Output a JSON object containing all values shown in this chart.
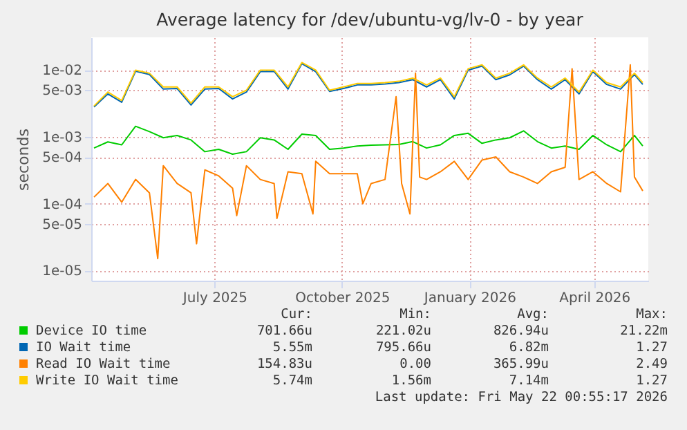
{
  "chart_data": {
    "type": "line",
    "title": "Average latency for /dev/ubuntu-vg/lv-0 - by year",
    "ylabel": "seconds",
    "x": [
      "2025-04-20",
      "2025-04-30",
      "2025-05-10",
      "2025-05-20",
      "2025-05-30",
      "2025-06-09",
      "2025-06-19",
      "2025-06-29",
      "2025-07-09",
      "2025-07-19",
      "2025-07-29",
      "2025-08-08",
      "2025-08-18",
      "2025-08-28",
      "2025-09-07",
      "2025-09-17",
      "2025-09-27",
      "2025-10-07",
      "2025-10-17",
      "2025-10-27",
      "2025-11-06",
      "2025-11-16",
      "2025-11-26",
      "2025-12-06",
      "2025-12-16",
      "2025-12-26",
      "2026-01-05",
      "2026-01-15",
      "2026-01-25",
      "2026-02-04",
      "2026-02-14",
      "2026-02-24",
      "2026-03-06",
      "2026-03-16",
      "2026-03-26",
      "2026-04-05",
      "2026-04-15",
      "2026-04-25",
      "2026-05-05",
      "2026-05-15",
      "2026-05-21"
    ],
    "series": [
      {
        "name": "Device IO time",
        "color": "#00cc00",
        "values": [
          0.00068,
          0.00084,
          0.00076,
          0.00144,
          0.0012,
          0.00097,
          0.00105,
          0.0009,
          0.0006,
          0.00065,
          0.00055,
          0.0006,
          0.00097,
          0.0009,
          0.00065,
          0.0011,
          0.00105,
          0.00065,
          0.00068,
          0.00073,
          0.00075,
          0.00076,
          0.00077,
          0.00085,
          0.00068,
          0.00076,
          0.00105,
          0.00113,
          0.0008,
          0.0009,
          0.00097,
          0.00123,
          0.00085,
          0.00068,
          0.00073,
          0.00065,
          0.00105,
          0.00076,
          0.0006,
          0.00105,
          0.00073
        ]
      },
      {
        "name": "IO Wait time",
        "color": "#0066b3",
        "values": [
          0.0028,
          0.0044,
          0.0033,
          0.0096,
          0.0086,
          0.0052,
          0.0053,
          0.003,
          0.0052,
          0.0053,
          0.0037,
          0.0047,
          0.0095,
          0.0096,
          0.0052,
          0.0125,
          0.0095,
          0.0048,
          0.0053,
          0.006,
          0.006,
          0.0062,
          0.0065,
          0.0072,
          0.0056,
          0.0072,
          0.0037,
          0.01,
          0.0115,
          0.0072,
          0.0085,
          0.0115,
          0.0072,
          0.0052,
          0.0072,
          0.0044,
          0.0095,
          0.0061,
          0.0052,
          0.0086,
          0.0061
        ]
      },
      {
        "name": "Read IO Wait time",
        "color": "#ff8000",
        "x": [
          "2025-04-20",
          "2025-04-30",
          "2025-05-10",
          "2025-05-20",
          "2025-05-30",
          "2025-06-05",
          "2025-06-09",
          "2025-06-19",
          "2025-06-29",
          "2025-07-03",
          "2025-07-09",
          "2025-07-19",
          "2025-07-29",
          "2025-08-01",
          "2025-08-08",
          "2025-08-18",
          "2025-08-28",
          "2025-08-30",
          "2025-09-07",
          "2025-09-17",
          "2025-09-25",
          "2025-09-27",
          "2025-10-07",
          "2025-10-17",
          "2025-10-27",
          "2025-10-31",
          "2025-11-06",
          "2025-11-16",
          "2025-11-24",
          "2025-11-28",
          "2025-12-04",
          "2025-12-08",
          "2025-12-11",
          "2025-12-16",
          "2025-12-26",
          "2026-01-05",
          "2026-01-15",
          "2026-01-25",
          "2026-02-04",
          "2026-02-14",
          "2026-02-24",
          "2026-03-06",
          "2026-03-16",
          "2026-03-26",
          "2026-03-31",
          "2026-04-05",
          "2026-04-15",
          "2026-04-25",
          "2026-05-05",
          "2026-05-12",
          "2026-05-15",
          "2026-05-21"
        ],
        "values": [
          0.000125,
          0.0002,
          0.000105,
          0.00023,
          0.000145,
          1.5e-05,
          0.00037,
          0.0002,
          0.000145,
          2.5e-05,
          0.00032,
          0.00026,
          0.00017,
          6.6e-05,
          0.00037,
          0.00023,
          0.0002,
          6e-05,
          0.0003,
          0.00028,
          7e-05,
          0.00043,
          0.00028,
          0.00028,
          0.00028,
          0.0001,
          0.0002,
          0.00023,
          0.004,
          0.0002,
          7e-05,
          0.009,
          0.00025,
          0.00023,
          0.0003,
          0.00043,
          0.00023,
          0.00045,
          0.0005,
          0.0003,
          0.00025,
          0.0002,
          0.0003,
          0.00035,
          0.0105,
          0.00023,
          0.0003,
          0.0002,
          0.00015,
          0.012,
          0.00025,
          0.000155
        ]
      },
      {
        "name": "Write IO Wait time",
        "color": "#ffcc00",
        "values": [
          0.0029,
          0.0047,
          0.0035,
          0.01,
          0.009,
          0.0056,
          0.0056,
          0.0032,
          0.0056,
          0.0056,
          0.004,
          0.005,
          0.01,
          0.01,
          0.0056,
          0.013,
          0.01,
          0.005,
          0.0056,
          0.0063,
          0.0063,
          0.0065,
          0.0068,
          0.0076,
          0.006,
          0.0076,
          0.004,
          0.0105,
          0.012,
          0.0076,
          0.009,
          0.012,
          0.0076,
          0.0056,
          0.0076,
          0.0047,
          0.01,
          0.0065,
          0.0056,
          0.009,
          0.0065
        ]
      }
    ],
    "log": true,
    "xlim": [
      "2025-04-18",
      "2026-05-25"
    ],
    "xticks": [
      {
        "value": "2025-07-16",
        "label": "July 2025"
      },
      {
        "value": "2025-10-16",
        "label": "October 2025"
      },
      {
        "value": "2026-01-16",
        "label": "January 2026"
      },
      {
        "value": "2026-04-16",
        "label": "April 2026"
      }
    ],
    "ylim": [
      7e-06,
      0.031
    ],
    "yticks": [
      {
        "value": 1e-05,
        "label": "1e-05"
      },
      {
        "value": 5e-05,
        "label": "5e-05"
      },
      {
        "value": 0.0001,
        "label": "1e-04"
      },
      {
        "value": 0.0005,
        "label": "5e-04"
      },
      {
        "value": 0.001,
        "label": "1e-03"
      },
      {
        "value": 0.005,
        "label": "5e-03"
      },
      {
        "value": 0.01,
        "label": "1e-02"
      }
    ],
    "grid": true,
    "legend": "bottom",
    "marker": "none",
    "line_style": "solid",
    "annotations": [
      "Cur:",
      "Min:",
      "Avg:",
      "Max:",
      "701.66u",
      "221.02u",
      "826.94u",
      "21.22m",
      "5.55m",
      "795.66u",
      "6.82m",
      "1.27",
      "154.83u",
      "0.00",
      "365.99u",
      "2.49",
      "5.74m",
      "1.56m",
      "7.14m",
      "1.27",
      "Last update: Fri May 22 00:55:17 2026"
    ]
  }
}
